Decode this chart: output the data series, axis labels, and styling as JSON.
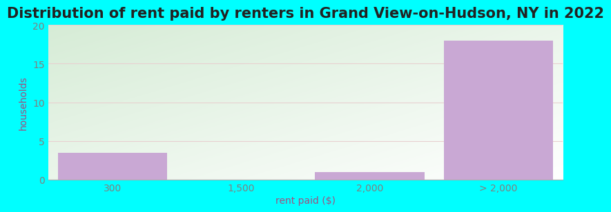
{
  "title": "Distribution of rent paid by renters in Grand View-on-Hudson, NY in 2022",
  "categories": [
    "300",
    "1,500",
    "2,000",
    "> 2,000"
  ],
  "values": [
    3.5,
    0,
    1,
    18
  ],
  "bar_color": "#C9A8D4",
  "bar_edgecolor": "#C9A8D4",
  "ylabel": "households",
  "xlabel": "rent paid ($)",
  "ylim": [
    0,
    20
  ],
  "yticks": [
    0,
    5,
    10,
    15,
    20
  ],
  "background_outer": "#00FFFF",
  "gradient_top_left": "#d6ecd6",
  "gradient_bottom_right": "#ffffff",
  "title_fontsize": 15,
  "axis_label_fontsize": 10,
  "tick_fontsize": 10,
  "grid_color": "#e8d0d0",
  "bar_width": 0.85,
  "ylabel_color": "#a05080",
  "xlabel_color": "#a05080",
  "tick_color": "#808080",
  "title_color": "#222222"
}
